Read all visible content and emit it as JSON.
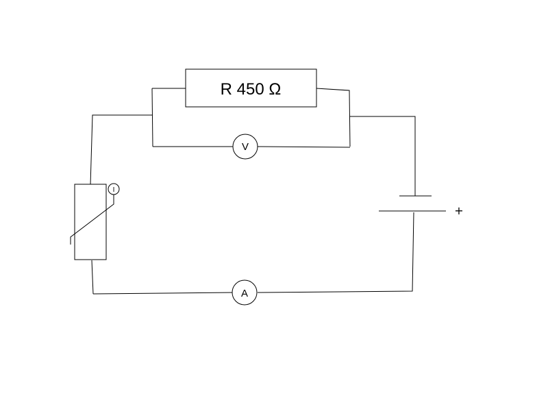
{
  "circuit": {
    "resistor": {
      "label": "R 450 Ω"
    },
    "voltmeter": {
      "symbol": "V"
    },
    "ammeter": {
      "symbol": "A"
    },
    "thermistor": {
      "current_indicator": "I"
    },
    "battery": {
      "positive_terminal": "+"
    }
  }
}
